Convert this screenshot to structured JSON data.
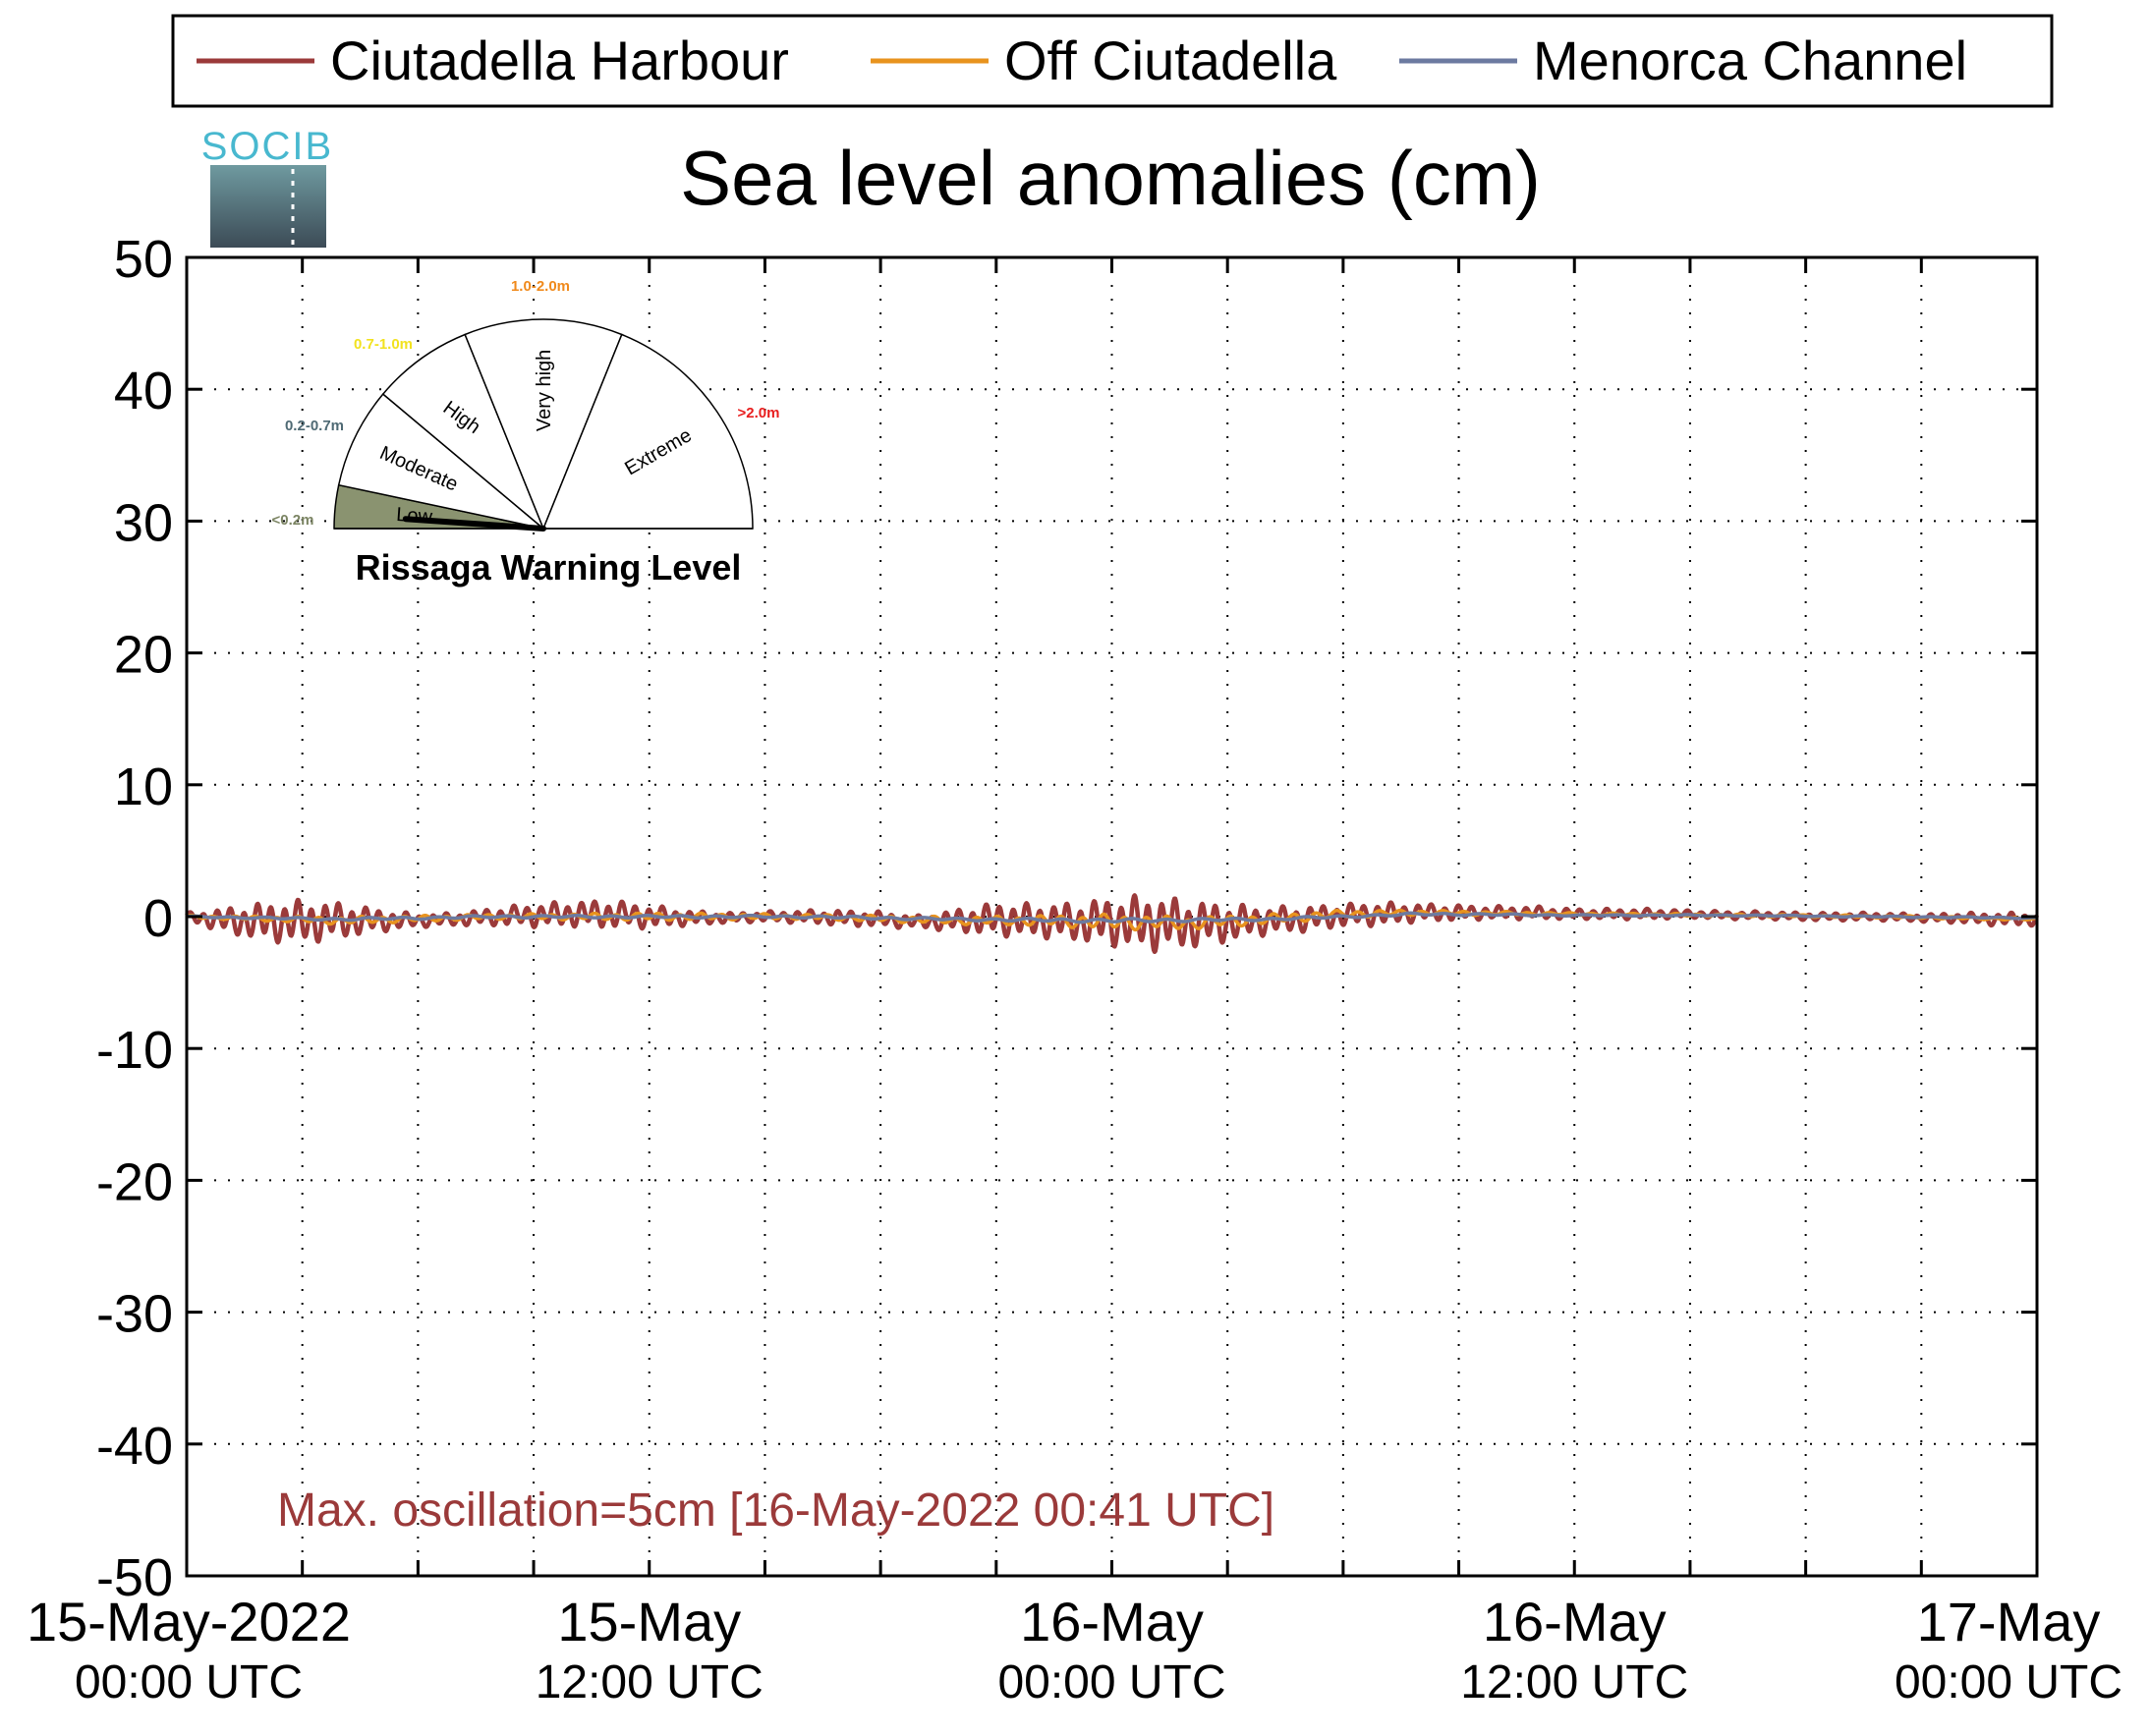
{
  "chart_data": {
    "type": "line",
    "title": "Sea level anomalies (cm)",
    "logo_text": "SOCIB",
    "ylim": [
      -50,
      50
    ],
    "yticks": [
      50,
      40,
      30,
      20,
      10,
      0,
      -10,
      -20,
      -30,
      -40,
      -50
    ],
    "ytick_labels": [
      "50",
      "40",
      "30",
      "20",
      "10",
      "0",
      "-10",
      "-20",
      "-30",
      "-40",
      "-50"
    ],
    "x_range_hours": [
      0,
      48
    ],
    "x_minor_ticks_hours": [
      0,
      3,
      6,
      9,
      12,
      15,
      18,
      21,
      24,
      27,
      30,
      33,
      36,
      39,
      42,
      45,
      48
    ],
    "x_tick_labels": [
      {
        "hour": 0,
        "line1": "15-May-2022",
        "line2": "00:00 UTC"
      },
      {
        "hour": 12,
        "line1": "15-May",
        "line2": "12:00 UTC"
      },
      {
        "hour": 24,
        "line1": "16-May",
        "line2": "00:00 UTC"
      },
      {
        "hour": 36,
        "line1": "16-May",
        "line2": "12:00 UTC"
      },
      {
        "hour": 48,
        "line1": "17-May",
        "line2": "00:00 UTC"
      }
    ],
    "grid": true,
    "legend_position": "top",
    "series": [
      {
        "name": "Ciutadella Harbour",
        "color": "#9b3a3a",
        "envelope": {
          "hours": [
            0,
            1,
            2,
            3,
            4,
            5,
            6,
            7,
            8,
            9,
            10,
            11,
            12,
            13,
            14,
            15,
            16,
            17,
            18,
            19,
            20,
            21,
            22,
            23,
            24,
            25,
            26,
            27,
            28,
            29,
            30,
            31,
            32,
            33,
            34,
            35,
            36,
            37,
            38,
            39,
            40,
            41,
            42,
            43,
            44,
            45,
            46,
            47,
            48
          ],
          "amplitude_cm": [
            0.3,
            1.0,
            1.5,
            1.7,
            1.4,
            0.9,
            0.5,
            0.5,
            0.7,
            0.9,
            1.0,
            1.1,
            0.9,
            0.6,
            0.4,
            0.4,
            0.5,
            0.6,
            0.6,
            0.5,
            0.9,
            1.3,
            1.3,
            1.5,
            1.9,
            2.2,
            1.9,
            1.5,
            1.1,
            1.0,
            0.9,
            0.9,
            0.7,
            0.6,
            0.5,
            0.5,
            0.4,
            0.4,
            0.4,
            0.3,
            0.3,
            0.3,
            0.3,
            0.3,
            0.3,
            0.3,
            0.4,
            0.5,
            0.5
          ],
          "mean_cm": [
            0.0,
            -0.3,
            -0.4,
            -0.4,
            -0.3,
            -0.3,
            -0.3,
            -0.2,
            0.0,
            0.1,
            0.2,
            0.2,
            0.0,
            -0.1,
            -0.1,
            0.0,
            0.0,
            -0.1,
            -0.2,
            -0.4,
            -0.3,
            -0.2,
            -0.3,
            -0.4,
            -0.4,
            -0.5,
            -0.6,
            -0.5,
            -0.3,
            -0.2,
            0.1,
            0.2,
            0.3,
            0.3,
            0.3,
            0.3,
            0.2,
            0.2,
            0.2,
            0.2,
            0.1,
            0.1,
            0.0,
            0.0,
            0.0,
            -0.1,
            -0.1,
            -0.2,
            -0.2
          ]
        }
      },
      {
        "name": "Off Ciutadella",
        "color": "#e8931e",
        "envelope": {
          "hours": [
            0,
            4,
            8,
            12,
            16,
            20,
            22,
            24,
            26,
            28,
            30,
            32,
            36,
            40,
            44,
            48
          ],
          "amplitude_cm": [
            0.1,
            0.3,
            0.2,
            0.3,
            0.2,
            0.3,
            0.4,
            0.6,
            0.5,
            0.4,
            0.3,
            0.2,
            0.1,
            0.1,
            0.1,
            0.1
          ],
          "mean_cm": [
            0.0,
            -0.3,
            0.0,
            0.0,
            0.0,
            -0.3,
            -0.3,
            -0.4,
            -0.5,
            -0.2,
            0.2,
            0.3,
            0.2,
            0.1,
            0.0,
            -0.2
          ]
        }
      },
      {
        "name": "Menorca Channel",
        "color": "#6c7aa0",
        "envelope": {
          "hours": [
            0,
            4,
            8,
            12,
            16,
            20,
            24,
            28,
            32,
            36,
            40,
            44,
            48
          ],
          "amplitude_cm": [
            0.05,
            0.1,
            0.1,
            0.1,
            0.1,
            0.1,
            0.15,
            0.1,
            0.1,
            0.05,
            0.05,
            0.05,
            0.05
          ],
          "mean_cm": [
            0.0,
            -0.2,
            0.0,
            0.0,
            0.0,
            -0.2,
            -0.3,
            -0.2,
            0.2,
            0.1,
            0.1,
            0.0,
            -0.1
          ]
        }
      }
    ],
    "annotation": "Max. oscillation=5cm [16-May-2022 00:41 UTC]",
    "annotation_color": "#9b3a3a",
    "warning_gauge": {
      "title": "Rissaga Warning Level",
      "current_level": "Low",
      "segments": [
        {
          "label": "Low",
          "range": "<0.2m",
          "color": "#8a9370",
          "range_color": "#7c8564",
          "active": true
        },
        {
          "label": "Moderate",
          "range": "0.2-0.7m",
          "color": "#ffffff",
          "range_color": "#4f6a74",
          "active": false
        },
        {
          "label": "High",
          "range": "0.7-1.0m",
          "color": "#ffffff",
          "range_color": "#f2e21f",
          "active": false
        },
        {
          "label": "Very high",
          "range": "1.0-2.0m",
          "color": "#ffffff",
          "range_color": "#f08a1c",
          "active": false
        },
        {
          "label": "Extreme",
          "range": ">2.0m",
          "color": "#ffffff",
          "range_color": "#e81e1e",
          "active": false
        }
      ]
    }
  }
}
